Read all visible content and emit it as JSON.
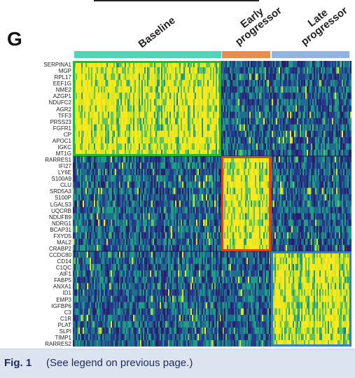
{
  "panel_letter": "G",
  "groups": [
    {
      "name": "Baseline",
      "color": "#4fd6b6"
    },
    {
      "name": "Early progressor",
      "color": "#f08a48"
    },
    {
      "name": "Late progressor",
      "color": "#94b4e0"
    }
  ],
  "gene_clusters": [
    {
      "group": "Baseline",
      "box_color": "#1fbf2a",
      "genes": [
        "SERPINA1",
        "MGP",
        "RPL17",
        "EEF1G",
        "NME2",
        "AZGP1",
        "NDUFC2",
        "AGR2",
        "TFF3",
        "PRSS23",
        "FGFR1",
        "CP",
        "APOC1",
        "IGKC",
        "MT1G"
      ]
    },
    {
      "group": "Early progressor",
      "box_color": "#d6451e",
      "genes": [
        "RARRES1",
        "IFI27",
        "LY6E",
        "S100A9",
        "CLU",
        "SRD5A3",
        "S100P",
        "LGALS3",
        "UQCRB",
        "NDUFB9",
        "NDRG1",
        "BCAP31",
        "FXYD5",
        "MAL2",
        "CRABP2"
      ]
    },
    {
      "group": "Late progressor",
      "box_color": "#2f7fd6",
      "genes": [
        "CCDC80",
        "CD14",
        "C1QC",
        "AIF1",
        "FABP5",
        "ANXA1",
        "ID1",
        "EMP3",
        "IGFBP6",
        "C3",
        "C1R",
        "PLAT",
        "SLPI",
        "TIMP1",
        "RARRES2"
      ]
    }
  ],
  "colormap": [
    "#2c1f6a",
    "#253a8c",
    "#1f6e8c",
    "#219c85",
    "#62c45a",
    "#d9e51f",
    "#fbe81f"
  ],
  "caption": {
    "label": "Fig. 1",
    "text": "(See legend on previous page.)"
  }
}
